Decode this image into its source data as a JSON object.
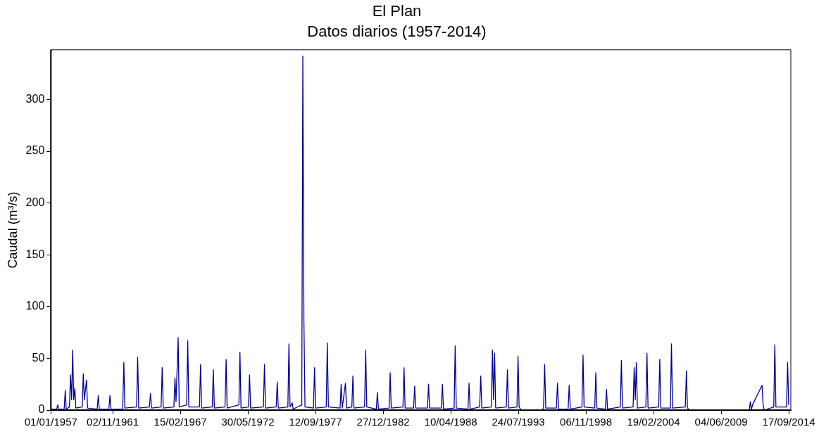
{
  "chart_data": {
    "type": "line",
    "title": "El Plan",
    "subtitle": "Datos diarios (1957-2014)",
    "ylabel": "Caudal (m³/s)",
    "xlim": [
      "1957-01-01",
      "2014-11-15"
    ],
    "ylim": [
      0,
      348
    ],
    "xticks": [
      {
        "value": "1957-01-01",
        "label": "01/01/1957"
      },
      {
        "value": "1961-11-02",
        "label": "02/11/1961"
      },
      {
        "value": "1967-02-15",
        "label": "15/02/1967"
      },
      {
        "value": "1972-05-30",
        "label": "30/05/1972"
      },
      {
        "value": "1977-09-12",
        "label": "12/09/1977"
      },
      {
        "value": "1982-12-27",
        "label": "27/12/1982"
      },
      {
        "value": "1988-04-10",
        "label": "10/04/1988"
      },
      {
        "value": "1993-07-24",
        "label": "24/07/1993"
      },
      {
        "value": "1998-11-06",
        "label": "06/11/1998"
      },
      {
        "value": "2004-02-19",
        "label": "19/02/2004"
      },
      {
        "value": "2009-06-04",
        "label": "04/06/2009"
      },
      {
        "value": "2014-09-17",
        "label": "17/09/2014"
      }
    ],
    "yticks": [
      0,
      50,
      100,
      150,
      200,
      250,
      300
    ],
    "grid": false,
    "legend": false,
    "marker": "none",
    "line_style": "solid",
    "series": [
      {
        "color": "#000099",
        "x": [
          "1957-01",
          "1957-06",
          "1957-07",
          "1957-08",
          "1958-01",
          "1958-02",
          "1958-03",
          "1958-06",
          "1958-07",
          "1958-08",
          "1958-09",
          "1958-10",
          "1958-11",
          "1958-12",
          "1959-06",
          "1959-07",
          "1959-08",
          "1959-10",
          "1959-11",
          "1960-08",
          "1960-09",
          "1960-10",
          "1961-07",
          "1961-08",
          "1961-09",
          "1962-08",
          "1962-09",
          "1962-10",
          "1963-09",
          "1963-10",
          "1963-11",
          "1964-09",
          "1964-10",
          "1964-11",
          "1965-08",
          "1965-09",
          "1965-10",
          "1966-08",
          "1966-09",
          "1966-10",
          "1966-12",
          "1967-01",
          "1967-08",
          "1967-09",
          "1967-10",
          "1968-08",
          "1968-09",
          "1968-10",
          "1969-08",
          "1969-09",
          "1969-10",
          "1970-08",
          "1970-09",
          "1970-10",
          "1971-09",
          "1971-10",
          "1971-11",
          "1972-06",
          "1972-07",
          "1972-08",
          "1973-08",
          "1973-09",
          "1973-10",
          "1974-08",
          "1974-09",
          "1974-10",
          "1975-07",
          "1975-08",
          "1975-09",
          "1975-11",
          "1975-12",
          "1976-08",
          "1976-09",
          "1976-10",
          "1976-11",
          "1977-07",
          "1977-08",
          "1977-09",
          "1978-07",
          "1978-08",
          "1978-09",
          "1979-08",
          "1979-09",
          "1979-10",
          "1980-01",
          "1980-02",
          "1980-07",
          "1980-08",
          "1980-09",
          "1981-07",
          "1981-08",
          "1981-09",
          "1982-06",
          "1982-07",
          "1982-08",
          "1983-06",
          "1983-07",
          "1983-08",
          "1984-07",
          "1984-08",
          "1984-09",
          "1985-05",
          "1985-06",
          "1985-07",
          "1986-06",
          "1986-07",
          "1986-08",
          "1987-07",
          "1987-08",
          "1987-09",
          "1988-07",
          "1988-08",
          "1988-09",
          "1989-08",
          "1989-09",
          "1989-10",
          "1990-07",
          "1990-08",
          "1990-09",
          "1991-06",
          "1991-07",
          "1991-08",
          "1991-09",
          "1991-10",
          "1992-08",
          "1992-09",
          "1992-10",
          "1993-06",
          "1993-07",
          "1993-08",
          "1993-10",
          "1995-06",
          "1995-07",
          "1995-08",
          "1995-09",
          "1996-07",
          "1996-08",
          "1996-09",
          "1997-06",
          "1997-07",
          "1997-08",
          "1998-07",
          "1998-08",
          "1998-09",
          "1999-07",
          "1999-08",
          "1999-09",
          "2000-05",
          "2000-06",
          "2000-07",
          "2001-07",
          "2001-08",
          "2001-09",
          "2002-07",
          "2002-08",
          "2002-09",
          "2002-10",
          "2002-11",
          "2003-07",
          "2003-08",
          "2003-09",
          "2004-07",
          "2004-08",
          "2004-09",
          "2005-06",
          "2005-07",
          "2005-08",
          "2006-08",
          "2006-09",
          "2006-10",
          "2006-12",
          "2011-08",
          "2011-09",
          "2011-10",
          "2011-11",
          "2012-08",
          "2012-09",
          "2012-10",
          "2013-07",
          "2013-08",
          "2013-09",
          "2014-07",
          "2014-08",
          "2014-09"
        ],
        "values": [
          1,
          1,
          5,
          1,
          1,
          19,
          1,
          3,
          34,
          10,
          58,
          10,
          21,
          2,
          3,
          35,
          10,
          29,
          2,
          1,
          14,
          1,
          1,
          14,
          1,
          1,
          46,
          2,
          3,
          51,
          2,
          3,
          16,
          2,
          3,
          41,
          2,
          3,
          31,
          8,
          70,
          3,
          5,
          67,
          3,
          3,
          44,
          2,
          3,
          39,
          2,
          3,
          49,
          2,
          5,
          56,
          2,
          3,
          34,
          2,
          3,
          44,
          2,
          3,
          27,
          2,
          3,
          64,
          3,
          7,
          1,
          5,
          342,
          87,
          3,
          2,
          41,
          2,
          3,
          65,
          3,
          2,
          25,
          2,
          26,
          2,
          3,
          33,
          2,
          3,
          58,
          3,
          1,
          17,
          1,
          2,
          36,
          2,
          3,
          41,
          2,
          2,
          23,
          2,
          2,
          25,
          2,
          2,
          25,
          1,
          2,
          62,
          2,
          1,
          26,
          1,
          3,
          33,
          2,
          3,
          58,
          10,
          55,
          2,
          3,
          39,
          2,
          3,
          52,
          3,
          0,
          0,
          3,
          44,
          2,
          2,
          26,
          1,
          1,
          24,
          1,
          3,
          53,
          3,
          2,
          36,
          2,
          1,
          20,
          1,
          3,
          48,
          2,
          3,
          41,
          10,
          46,
          2,
          3,
          55,
          2,
          3,
          49,
          2,
          2,
          64,
          2,
          3,
          38,
          2,
          0,
          0,
          8,
          0,
          5,
          24,
          5,
          0,
          3,
          63,
          3,
          3,
          46,
          5
        ]
      }
    ]
  }
}
